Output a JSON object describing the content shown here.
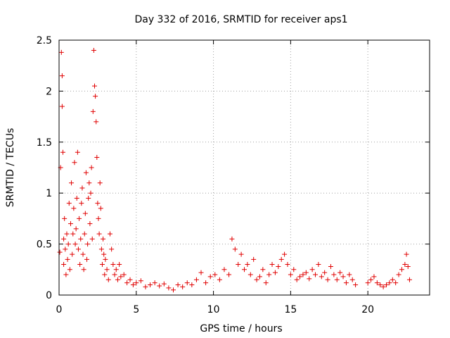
{
  "chart_data": {
    "type": "scatter",
    "title": "Day 332 of 2016, SRMTID for receiver aps1",
    "xlabel": "GPS time / hours",
    "ylabel": "SRMTID / TECUs",
    "xlim": [
      0,
      24
    ],
    "ylim": [
      0,
      2.5
    ],
    "xticks": [
      0,
      5,
      10,
      15,
      20
    ],
    "yticks": [
      0,
      0.5,
      1,
      1.5,
      2,
      2.5
    ],
    "xtick_labels": [
      "0",
      "5",
      "10",
      "15",
      "20"
    ],
    "ytick_labels": [
      "0",
      "0.5",
      "1",
      "1.5",
      "2",
      "2.5"
    ],
    "grid": true,
    "marker": "+",
    "color": "#e00000",
    "series": [
      {
        "name": "SRMTID",
        "x": [
          0.05,
          0.1,
          0.15,
          0.2,
          0.2,
          0.25,
          0.3,
          0.3,
          0.35,
          0.4,
          0.45,
          0.5,
          0.55,
          0.6,
          0.65,
          0.7,
          0.75,
          0.8,
          0.85,
          0.9,
          0.95,
          1.0,
          1.05,
          1.1,
          1.15,
          1.2,
          1.25,
          1.3,
          1.35,
          1.4,
          1.45,
          1.5,
          1.55,
          1.6,
          1.65,
          1.7,
          1.75,
          1.8,
          1.85,
          1.9,
          1.95,
          2.0,
          2.05,
          2.1,
          2.15,
          2.2,
          2.25,
          2.3,
          2.35,
          2.4,
          2.45,
          2.5,
          2.55,
          2.6,
          2.65,
          2.7,
          2.75,
          2.8,
          2.85,
          2.9,
          2.95,
          3.0,
          3.1,
          3.2,
          3.3,
          3.4,
          3.5,
          3.6,
          3.7,
          3.8,
          3.9,
          4.0,
          4.2,
          4.4,
          4.6,
          4.8,
          5.0,
          5.3,
          5.6,
          5.9,
          6.2,
          6.5,
          6.8,
          7.1,
          7.4,
          7.7,
          8.0,
          8.3,
          8.6,
          8.9,
          9.2,
          9.5,
          9.8,
          10.1,
          10.4,
          10.7,
          11.0,
          11.2,
          11.4,
          11.6,
          11.8,
          12.0,
          12.2,
          12.4,
          12.6,
          12.8,
          13.0,
          13.2,
          13.4,
          13.6,
          13.8,
          14.0,
          14.2,
          14.4,
          14.6,
          14.8,
          15.0,
          15.2,
          15.4,
          15.6,
          15.8,
          16.0,
          16.2,
          16.4,
          16.6,
          16.8,
          17.0,
          17.2,
          17.4,
          17.6,
          17.8,
          18.0,
          18.2,
          18.4,
          18.6,
          18.8,
          19.0,
          19.2,
          20.0,
          20.2,
          20.4,
          20.6,
          20.8,
          21.0,
          21.2,
          21.4,
          21.6,
          21.8,
          22.0,
          22.2,
          22.4,
          22.5,
          22.6,
          22.7
        ],
        "y": [
          0.42,
          1.25,
          2.38,
          2.15,
          1.85,
          1.4,
          0.55,
          0.3,
          0.75,
          0.45,
          0.2,
          0.6,
          0.35,
          0.5,
          0.9,
          0.25,
          0.7,
          1.1,
          0.4,
          0.6,
          0.85,
          1.3,
          0.5,
          0.65,
          0.95,
          1.4,
          0.45,
          0.75,
          0.3,
          0.55,
          0.9,
          1.05,
          0.4,
          0.25,
          0.6,
          0.8,
          1.2,
          0.35,
          0.5,
          0.95,
          1.1,
          0.7,
          1.0,
          1.25,
          0.55,
          1.8,
          2.4,
          2.05,
          1.95,
          1.7,
          1.35,
          0.9,
          0.75,
          0.6,
          1.1,
          0.85,
          0.45,
          0.3,
          0.55,
          0.4,
          0.2,
          0.35,
          0.25,
          0.15,
          0.6,
          0.45,
          0.3,
          0.2,
          0.25,
          0.15,
          0.3,
          0.18,
          0.2,
          0.12,
          0.15,
          0.1,
          0.12,
          0.14,
          0.08,
          0.1,
          0.12,
          0.09,
          0.11,
          0.07,
          0.05,
          0.1,
          0.08,
          0.12,
          0.1,
          0.15,
          0.22,
          0.12,
          0.18,
          0.2,
          0.15,
          0.25,
          0.2,
          0.55,
          0.45,
          0.3,
          0.4,
          0.25,
          0.3,
          0.2,
          0.35,
          0.15,
          0.18,
          0.25,
          0.12,
          0.2,
          0.3,
          0.22,
          0.28,
          0.35,
          0.4,
          0.3,
          0.2,
          0.25,
          0.15,
          0.18,
          0.2,
          0.22,
          0.16,
          0.25,
          0.2,
          0.3,
          0.18,
          0.22,
          0.15,
          0.28,
          0.2,
          0.15,
          0.22,
          0.18,
          0.12,
          0.2,
          0.15,
          0.1,
          0.12,
          0.15,
          0.18,
          0.12,
          0.1,
          0.08,
          0.1,
          0.12,
          0.15,
          0.12,
          0.2,
          0.25,
          0.3,
          0.4,
          0.28,
          0.15
        ]
      }
    ]
  }
}
